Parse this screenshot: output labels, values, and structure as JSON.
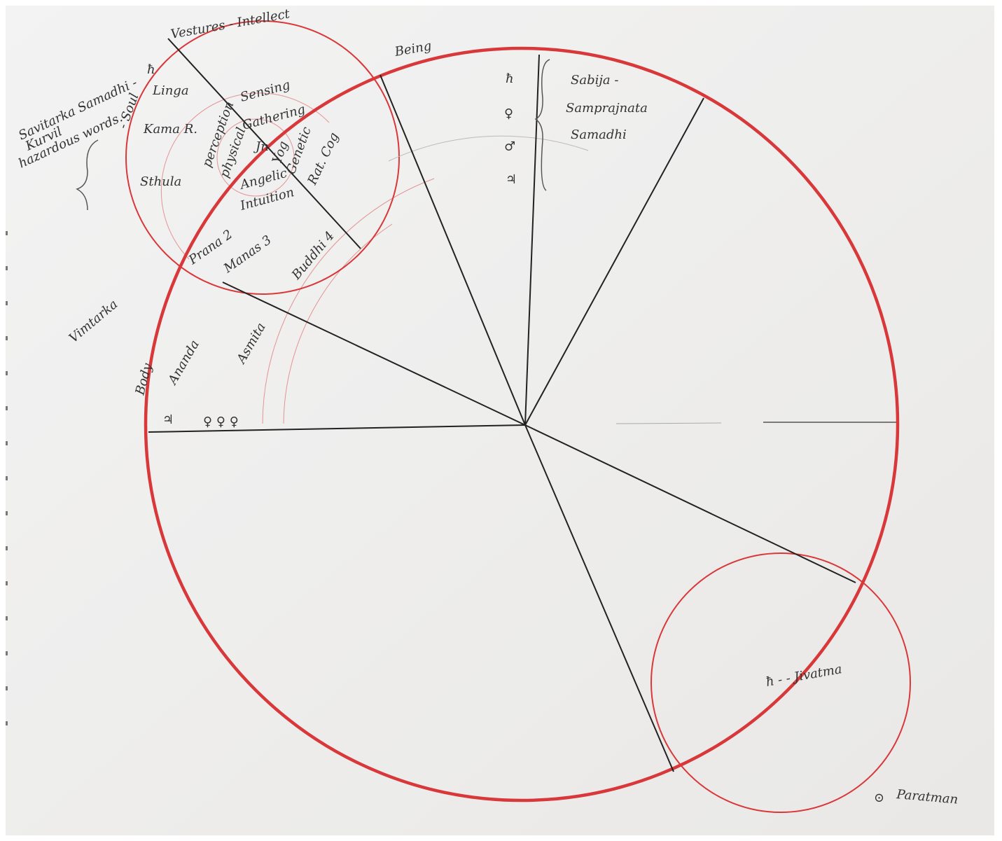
{
  "annotations": {
    "savitarka": "Savitarka Samadhi -",
    "kurvil": "Kurvil",
    "hazardous": "hazardous words.",
    "soul": "- Soul",
    "saturn_top": "ħ",
    "vestures": "Vestures - Intellect",
    "linga": "Linga",
    "kama": "Kama R.",
    "sthula": "Sthula",
    "perception": "perception",
    "physics": "physical",
    "sensing": "Sensing",
    "gathering": "Gathering",
    "jn": "Jn",
    "yog": "Yog",
    "genetic": "Genetic",
    "ratcog": "Rat. Cog",
    "angelic": "Angelic",
    "intuition": "Intuition",
    "prana": "Prana 2",
    "manas": "Manas 3",
    "buddhi": "Buddhi 4",
    "vimtarka": "Vimtarka",
    "body": "Body",
    "ananda": "Ananda",
    "asmita": "Asmita",
    "jupiter_left": "♃",
    "venus_row": "♀ ♀ ♀",
    "being": "Being",
    "sym1": "ħ",
    "sym2": "♀",
    "sym3": "♂",
    "sym4": "♃",
    "sabija": "Sabija -",
    "samprajnata": "Samprajnata",
    "samadhi": "Samadhi",
    "jivatma": "ħ - - Jivatma",
    "sun": "⊙",
    "paratman": "Paratman"
  }
}
